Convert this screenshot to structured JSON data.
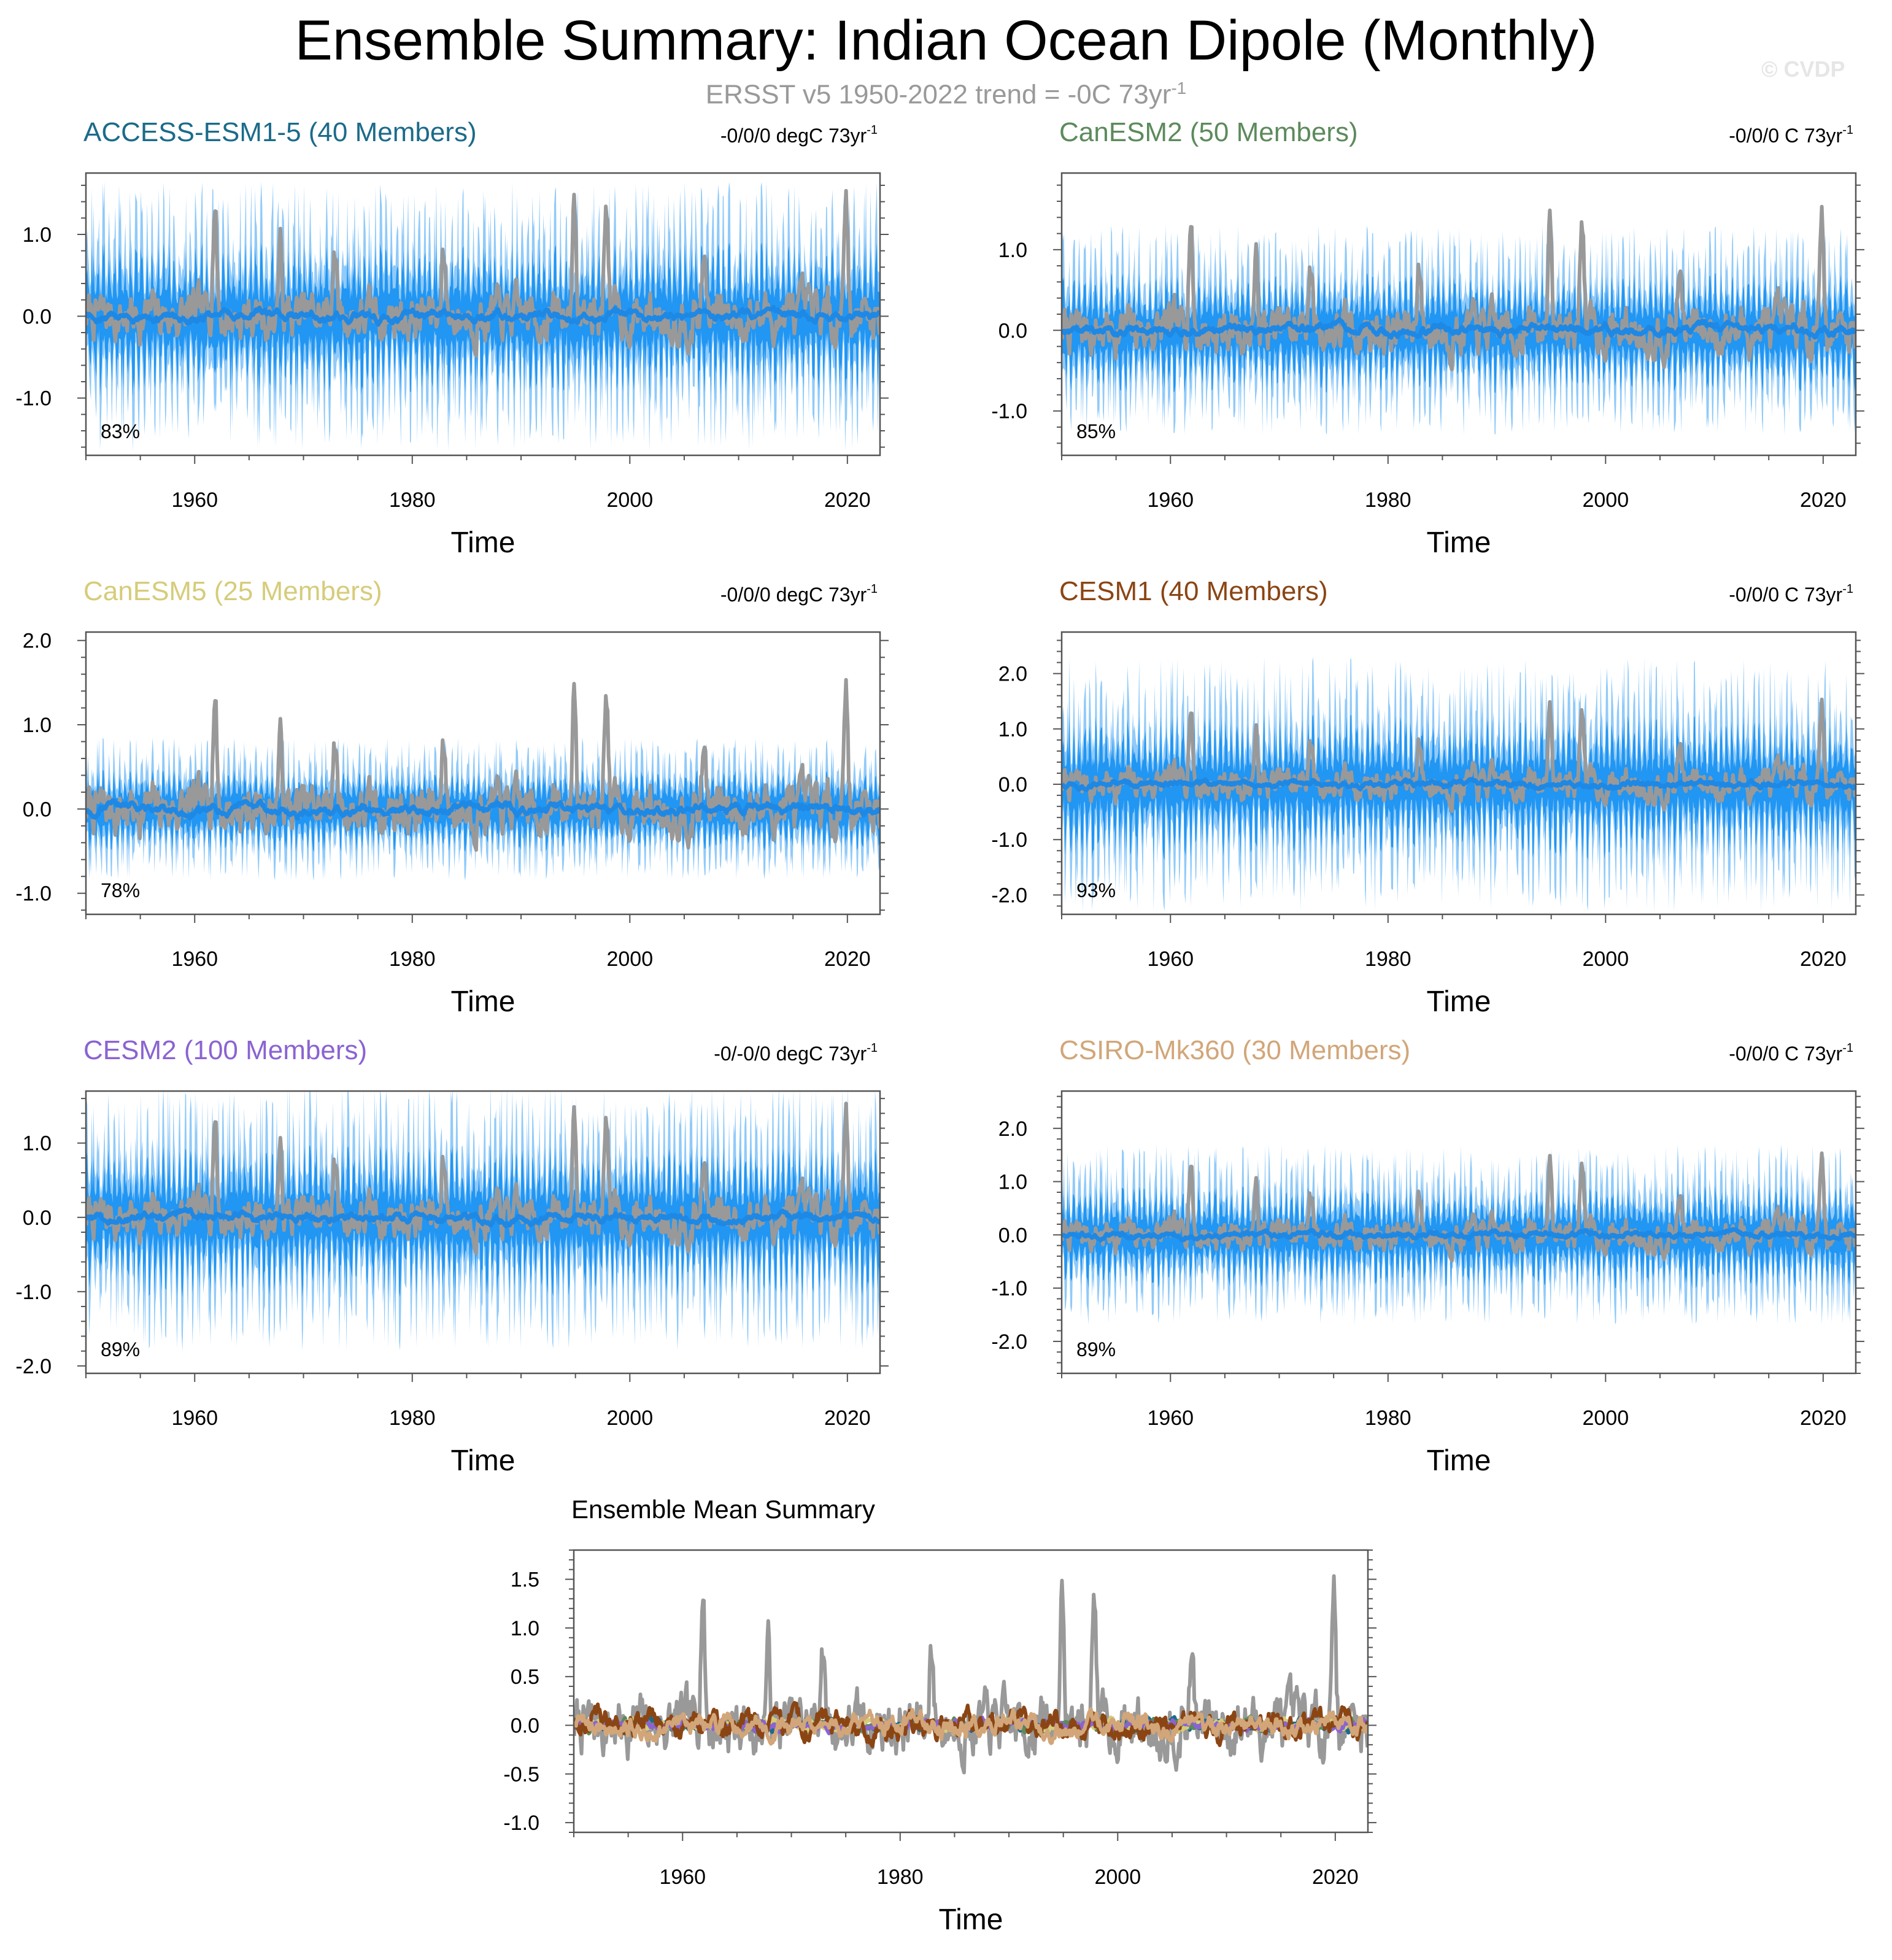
{
  "title": "Ensemble Summary: Indian Ocean Dipole (Monthly)",
  "subtitle": {
    "text": "ERSST v5 1950-2022 trend = -0C 73yr",
    "superscript": "-1"
  },
  "watermark": "© CVDP",
  "colors": {
    "observed": "#999999",
    "ensemble_mean": "#1e88e5",
    "spread_outer": "#90caf9",
    "spread_inner": "#2196f3",
    "frame": "#555555"
  },
  "chart_data": [
    {
      "type": "line",
      "title": "ACCESS-ESM1-5 (40 Members)",
      "title_color": "#1b6b8a",
      "trend_label": "-0/0/0 degC 73yr",
      "trend_superscript": "-1",
      "xlabel": "Time",
      "xlim": [
        1950,
        2023
      ],
      "x_ticks": [
        "1960",
        "1980",
        "2000",
        "2020"
      ],
      "ylim": [
        -1.7,
        1.75
      ],
      "y_ticks": [
        "-1.0",
        "0.0",
        "1.0"
      ],
      "annotation": "83%",
      "amplitude": 1.55
    },
    {
      "type": "line",
      "title": "CanESM2 (50 Members)",
      "title_color": "#5c8a5c",
      "trend_label": "-0/0/0 C 73yr",
      "trend_superscript": "-1",
      "xlabel": "Time",
      "xlim": [
        1950,
        2023
      ],
      "x_ticks": [
        "1960",
        "1980",
        "2000",
        "2020"
      ],
      "ylim": [
        -1.55,
        1.95
      ],
      "y_ticks": [
        "-1.0",
        "0.0",
        "1.0"
      ],
      "annotation": "85%",
      "amplitude": 1.2
    },
    {
      "type": "line",
      "title": "CanESM5 (25 Members)",
      "title_color": "#d6cc7a",
      "trend_label": "-0/0/0 degC 73yr",
      "trend_superscript": "-1",
      "xlabel": "Time",
      "xlim": [
        1950,
        2023
      ],
      "x_ticks": [
        "1960",
        "1980",
        "2000",
        "2020"
      ],
      "ylim": [
        -1.25,
        2.1
      ],
      "y_ticks": [
        "-1.0",
        "0.0",
        "1.0",
        "2.0"
      ],
      "annotation": "78%",
      "amplitude": 0.75
    },
    {
      "type": "line",
      "title": "CESM1 (40 Members)",
      "title_color": "#8b4513",
      "trend_label": "-0/0/0 C 73yr",
      "trend_superscript": "-1",
      "xlabel": "Time",
      "xlim": [
        1950,
        2023
      ],
      "x_ticks": [
        "1960",
        "1980",
        "2000",
        "2020"
      ],
      "ylim": [
        -2.35,
        2.75
      ],
      "y_ticks": [
        "-2.0",
        "-1.0",
        "0.0",
        "1.0",
        "2.0"
      ],
      "annotation": "93%",
      "amplitude": 2.2
    },
    {
      "type": "line",
      "title": "CESM2 (100 Members)",
      "title_color": "#8a63d2",
      "trend_label": "-0/-0/0 degC 73yr",
      "trend_superscript": "-1",
      "xlabel": "Time",
      "xlim": [
        1950,
        2023
      ],
      "x_ticks": [
        "1960",
        "1980",
        "2000",
        "2020"
      ],
      "ylim": [
        -2.1,
        1.7
      ],
      "y_ticks": [
        "-2.0",
        "-1.0",
        "0.0",
        "1.0"
      ],
      "annotation": "89%",
      "amplitude": 1.7
    },
    {
      "type": "line",
      "title": "CSIRO-Mk360 (30 Members)",
      "title_color": "#d2a679",
      "trend_label": "-0/0/0 C 73yr",
      "trend_superscript": "-1",
      "xlabel": "Time",
      "xlim": [
        1950,
        2023
      ],
      "x_ticks": [
        "1960",
        "1980",
        "2000",
        "2020"
      ],
      "ylim": [
        -2.6,
        2.7
      ],
      "y_ticks": [
        "-2.0",
        "-1.0",
        "0.0",
        "1.0",
        "2.0"
      ],
      "annotation": "89%",
      "amplitude": 1.6
    },
    {
      "type": "line",
      "title": "Ensemble Mean Summary",
      "title_color": "#000000",
      "xlabel": "Time",
      "xlim": [
        1950,
        2023
      ],
      "x_ticks": [
        "1960",
        "1980",
        "2000",
        "2020"
      ],
      "ylim": [
        -1.1,
        1.8
      ],
      "y_ticks": [
        "-1.0",
        "-0.5",
        "0.0",
        "0.5",
        "1.0",
        "1.5"
      ],
      "series_colors": [
        "#1b6b8a",
        "#5c8a5c",
        "#d6cc7a",
        "#8a63d2",
        "#8b4513",
        "#d2a679"
      ]
    }
  ]
}
